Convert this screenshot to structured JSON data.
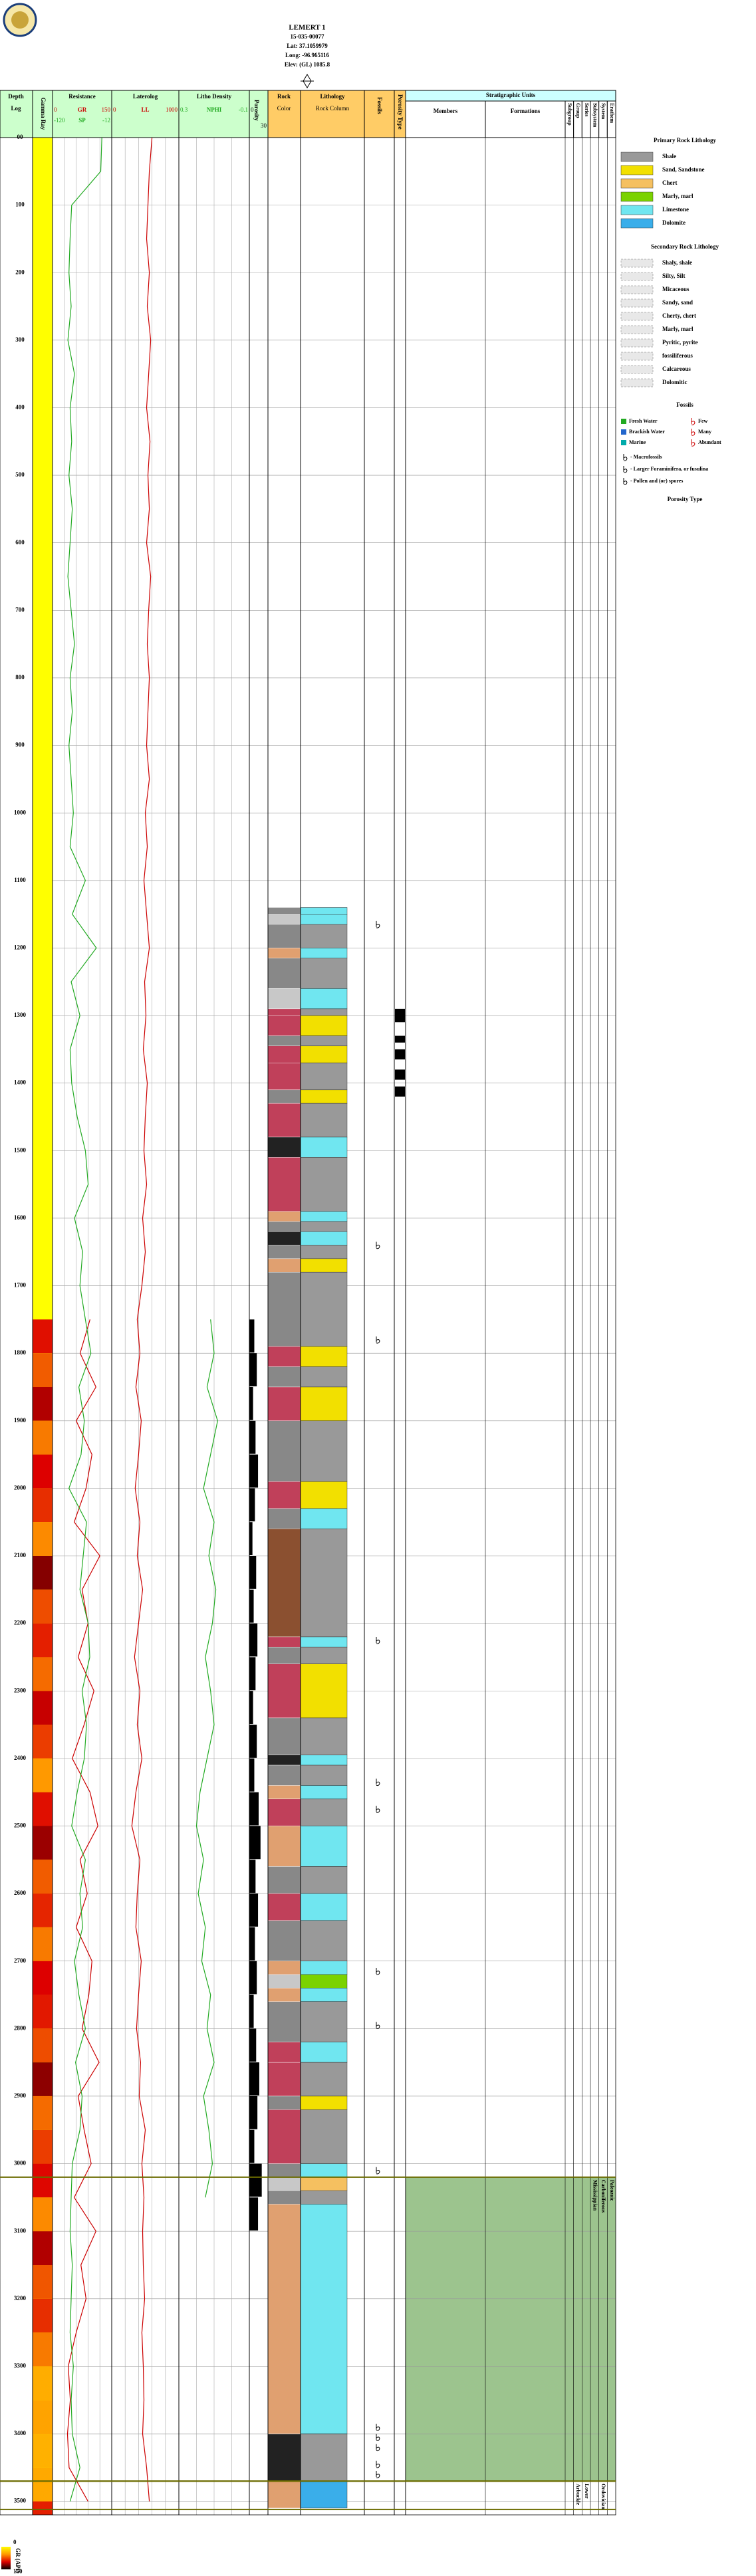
{
  "chart_data": {
    "type": "well_log",
    "title": "LEMERT 1",
    "subtitle": [
      "15-035-00077",
      "Lat: 37.1059979",
      "Long: -96.965116",
      "Elev: (GL) 1085.8"
    ],
    "depth_label": "Depth",
    "depth_sublabel": "Log",
    "gamma_label": "Gamma Ray",
    "ylim": [
      0,
      3520
    ],
    "yticks": [
      {
        "value": 0,
        "label": "00"
      },
      100,
      200,
      300,
      400,
      500,
      600,
      700,
      800,
      900,
      1000,
      1100,
      1200,
      1300,
      1400,
      1500,
      1600,
      1700,
      1800,
      1900,
      2000,
      2100,
      2200,
      2300,
      2400,
      2500,
      2600,
      2700,
      2800,
      2900,
      3000,
      3100,
      3200,
      3300,
      3400,
      3500
    ],
    "depths": [
      0,
      50,
      100,
      150,
      200,
      250,
      300,
      350,
      400,
      450,
      500,
      550,
      600,
      650,
      700,
      750,
      800,
      850,
      900,
      950,
      1000,
      1050,
      1100,
      1150,
      1200,
      1250,
      1300,
      1350,
      1400,
      1450,
      1500,
      1550,
      1600,
      1650,
      1700,
      1750,
      1800,
      1850,
      1900,
      1950,
      2000,
      2050,
      2100,
      2150,
      2200,
      2250,
      2300,
      2350,
      2400,
      2450,
      2500,
      2550,
      2600,
      2650,
      2700,
      2750,
      2800,
      2850,
      2900,
      2950,
      3000,
      3050,
      3100,
      3150,
      3200,
      3250,
      3300,
      3350,
      3400,
      3450,
      3500
    ],
    "tracks": [
      {
        "name": "Resistance",
        "xticks": [
          0,
          30,
          60,
          90,
          120,
          150
        ],
        "curves": [
          {
            "name": "GR",
            "color": "#cc0000",
            "xlim": [
              0,
              150
            ],
            "values": [
              null,
              null,
              null,
              null,
              null,
              null,
              null,
              null,
              null,
              null,
              null,
              null,
              null,
              null,
              null,
              null,
              null,
              null,
              null,
              null,
              null,
              null,
              null,
              null,
              null,
              null,
              null,
              null,
              null,
              null,
              null,
              null,
              null,
              null,
              null,
              95,
              70,
              110,
              60,
              100,
              85,
              55,
              120,
              75,
              90,
              65,
              105,
              80,
              50,
              95,
              115,
              70,
              88,
              60,
              100,
              92,
              75,
              118,
              65,
              80,
              98,
              55,
              110,
              72,
              85,
              60,
              40,
              45,
              38,
              42,
              90
            ]
          },
          {
            "name": "SP",
            "color": "#22aa22",
            "xlim": [
              -120,
              -12
            ],
            "values": [
              -30,
              -32,
              -85,
              -88,
              -90,
              -86,
              -92,
              -80,
              -88,
              -85,
              -90,
              -84,
              -88,
              -92,
              -86,
              -80,
              -88,
              -84,
              -90,
              -86,
              -82,
              -88,
              -60,
              -84,
              -40,
              -86,
              -70,
              -88,
              -85,
              -75,
              -60,
              -55,
              -80,
              -65,
              -70,
              -60,
              -50,
              -72,
              -62,
              -68,
              -90,
              -58,
              -64,
              -70,
              -55,
              -52,
              -66,
              -58,
              -62,
              -75,
              -85,
              -60,
              -70,
              -65,
              -80,
              -72,
              -60,
              -78,
              -66,
              -70,
              -84,
              -86,
              -88,
              -84,
              -86,
              -88,
              -82,
              -86,
              -84,
              -70,
              -88
            ]
          }
        ]
      },
      {
        "name": "Laterolog",
        "xticks": [
          0,
          200,
          400,
          600,
          800,
          1000
        ],
        "curves": [
          {
            "name": "LL",
            "color": "#cc0000",
            "xlim": [
              0,
              1000
            ],
            "values": [
              600,
              560,
              540,
              520,
              560,
              530,
              580,
              550,
              520,
              570,
              540,
              560,
              520,
              580,
              550,
              530,
              560,
              540,
              520,
              560,
              500,
              530,
              480,
              520,
              560,
              490,
              510,
              470,
              530,
              500,
              480,
              520,
              460,
              500,
              450,
              380,
              420,
              360,
              440,
              400,
              350,
              420,
              380,
              460,
              400,
              340,
              420,
              380,
              450,
              360,
              300,
              420,
              380,
              360,
              440,
              400,
              370,
              430,
              410,
              500,
              450,
              480,
              460,
              470,
              490,
              450,
              470,
              480,
              460,
              520,
              560
            ]
          }
        ]
      },
      {
        "name": "Litho Density",
        "xticks": [
          0.3,
          0.2,
          0.1,
          0,
          -0.1
        ],
        "curves": [
          {
            "name": "NPHI",
            "color": "#22aa22",
            "xlim": [
              0.3,
              -0.1
            ],
            "values": [
              null,
              null,
              null,
              null,
              null,
              null,
              null,
              null,
              null,
              null,
              null,
              null,
              null,
              null,
              null,
              null,
              null,
              null,
              null,
              null,
              null,
              null,
              null,
              null,
              null,
              null,
              null,
              null,
              null,
              null,
              null,
              null,
              null,
              null,
              null,
              0.12,
              0.1,
              0.14,
              0.08,
              0.12,
              0.16,
              0.1,
              0.13,
              0.09,
              0.11,
              0.15,
              0.12,
              0.1,
              0.14,
              0.18,
              0.2,
              0.16,
              0.19,
              0.15,
              0.17,
              0.12,
              0.14,
              0.1,
              0.16,
              0.13,
              0.11,
              0.15,
              null,
              null,
              null,
              null,
              null,
              null,
              null,
              null,
              null
            ]
          }
        ]
      },
      {
        "name": "Porosity",
        "curves": [
          {
            "color": "#000000",
            "style": "bars",
            "xlim": [
              0,
              30
            ],
            "values": [
              null,
              null,
              null,
              null,
              null,
              null,
              null,
              null,
              null,
              null,
              null,
              null,
              null,
              null,
              null,
              null,
              null,
              null,
              null,
              null,
              null,
              null,
              null,
              null,
              null,
              null,
              null,
              null,
              null,
              null,
              null,
              null,
              null,
              null,
              null,
              8,
              12,
              6,
              10,
              14,
              9,
              5,
              11,
              7,
              13,
              10,
              6,
              12,
              8,
              15,
              18,
              10,
              14,
              9,
              12,
              7,
              11,
              16,
              13,
              8,
              20,
              14,
              null,
              null,
              null,
              null,
              null,
              null,
              null,
              null,
              null
            ]
          }
        ]
      }
    ],
    "colorbar": {
      "label": "GR (API)",
      "lim": [
        0,
        150
      ],
      "colors": [
        "#ffff00",
        "#ff9900",
        "#dd0000",
        "#000000"
      ]
    },
    "rock_headers": {
      "color_title": "Rock",
      "color_sub": "Color",
      "lith_title": "Lithology",
      "lith_sub": "Rock Column",
      "fossils": "Fossils",
      "porosity_type": "Porosity Type"
    },
    "lithology": [
      {
        "top": 1140,
        "base": 1150,
        "lith": 4,
        "color": "#888888"
      },
      {
        "top": 1150,
        "base": 1165,
        "lith": 4,
        "color": "#c8c8c8"
      },
      {
        "top": 1165,
        "base": 1200,
        "lith": 0,
        "color": "#888888"
      },
      {
        "top": 1200,
        "base": 1215,
        "lith": 4,
        "color": "#e0a070"
      },
      {
        "top": 1215,
        "base": 1260,
        "lith": 0,
        "color": "#888888"
      },
      {
        "top": 1260,
        "base": 1290,
        "lith": 4,
        "color": "#c8c8c8"
      },
      {
        "top": 1290,
        "base": 1300,
        "lith": 0,
        "color": "#c0405a"
      },
      {
        "top": 1300,
        "base": 1330,
        "lith": 1,
        "color": "#c0405a"
      },
      {
        "top": 1330,
        "base": 1345,
        "lith": 0,
        "color": "#888888"
      },
      {
        "top": 1345,
        "base": 1370,
        "lith": 1,
        "color": "#c0405a"
      },
      {
        "top": 1370,
        "base": 1410,
        "lith": 0,
        "color": "#c0405a"
      },
      {
        "top": 1410,
        "base": 1430,
        "lith": 1,
        "color": "#888888"
      },
      {
        "top": 1430,
        "base": 1480,
        "lith": 0,
        "color": "#c0405a"
      },
      {
        "top": 1480,
        "base": 1510,
        "lith": 4,
        "color": "#222222"
      },
      {
        "top": 1510,
        "base": 1590,
        "lith": 0,
        "color": "#c0405a"
      },
      {
        "top": 1590,
        "base": 1605,
        "lith": 4,
        "color": "#e0a070"
      },
      {
        "top": 1605,
        "base": 1620,
        "lith": 0,
        "color": "#888888"
      },
      {
        "top": 1620,
        "base": 1640,
        "lith": 4,
        "color": "#222222"
      },
      {
        "top": 1640,
        "base": 1660,
        "lith": 0,
        "color": "#888888"
      },
      {
        "top": 1660,
        "base": 1680,
        "lith": 1,
        "color": "#e0a070"
      },
      {
        "top": 1680,
        "base": 1790,
        "lith": 0,
        "color": "#888888"
      },
      {
        "top": 1790,
        "base": 1820,
        "lith": 1,
        "color": "#c0405a"
      },
      {
        "top": 1820,
        "base": 1850,
        "lith": 0,
        "color": "#888888"
      },
      {
        "top": 1850,
        "base": 1900,
        "lith": 1,
        "color": "#c0405a"
      },
      {
        "top": 1900,
        "base": 1990,
        "lith": 0,
        "color": "#888888"
      },
      {
        "top": 1990,
        "base": 2030,
        "lith": 1,
        "color": "#c0405a"
      },
      {
        "top": 2030,
        "base": 2060,
        "lith": 4,
        "color": "#888888"
      },
      {
        "top": 2060,
        "base": 2220,
        "lith": 0,
        "color": "#8b5030"
      },
      {
        "top": 2220,
        "base": 2235,
        "lith": 4,
        "color": "#c0405a"
      },
      {
        "top": 2235,
        "base": 2260,
        "lith": 0,
        "color": "#888888"
      },
      {
        "top": 2260,
        "base": 2340,
        "lith": 1,
        "color": "#c0405a"
      },
      {
        "top": 2340,
        "base": 2395,
        "lith": 0,
        "color": "#888888"
      },
      {
        "top": 2395,
        "base": 2410,
        "lith": 4,
        "color": "#222222"
      },
      {
        "top": 2410,
        "base": 2440,
        "lith": 0,
        "color": "#888888"
      },
      {
        "top": 2440,
        "base": 2460,
        "lith": 4,
        "color": "#e0a070"
      },
      {
        "top": 2460,
        "base": 2500,
        "lith": 0,
        "color": "#c0405a"
      },
      {
        "top": 2500,
        "base": 2560,
        "lith": 4,
        "color": "#e0a070"
      },
      {
        "top": 2560,
        "base": 2600,
        "lith": 0,
        "color": "#888888"
      },
      {
        "top": 2600,
        "base": 2640,
        "lith": 4,
        "color": "#c0405a"
      },
      {
        "top": 2640,
        "base": 2700,
        "lith": 0,
        "color": "#888888"
      },
      {
        "top": 2700,
        "base": 2720,
        "lith": 4,
        "color": "#e0a070"
      },
      {
        "top": 2720,
        "base": 2740,
        "lith": 3,
        "color": "#c8c8c8"
      },
      {
        "top": 2740,
        "base": 2760,
        "lith": 4,
        "color": "#e0a070"
      },
      {
        "top": 2760,
        "base": 2820,
        "lith": 0,
        "color": "#888888"
      },
      {
        "top": 2820,
        "base": 2850,
        "lith": 4,
        "color": "#c0405a"
      },
      {
        "top": 2850,
        "base": 2900,
        "lith": 0,
        "color": "#c0405a"
      },
      {
        "top": 2900,
        "base": 2920,
        "lith": 1,
        "color": "#888888"
      },
      {
        "top": 2920,
        "base": 3000,
        "lith": 0,
        "color": "#c0405a"
      },
      {
        "top": 3000,
        "base": 3020,
        "lith": 4,
        "color": "#888888"
      },
      {
        "top": 3020,
        "base": 3040,
        "lith": 2,
        "color": "#c8c8c8"
      },
      {
        "top": 3040,
        "base": 3060,
        "lith": 0,
        "color": "#888888"
      },
      {
        "top": 3060,
        "base": 3400,
        "lith": 4,
        "color": "#e0a070"
      },
      {
        "top": 3400,
        "base": 3470,
        "lith": 0,
        "color": "#222222"
      },
      {
        "top": 3470,
        "base": 3510,
        "lith": 5,
        "color": "#e0a070"
      }
    ],
    "fossils": [
      1165,
      1640,
      1780,
      2225,
      2435,
      2475,
      2715,
      2795,
      3010,
      3390,
      3405,
      3420,
      3445,
      3460
    ],
    "porosity_types": [
      [
        1290,
        1310
      ],
      [
        1330,
        1340
      ],
      [
        1350,
        1365
      ],
      [
        1380,
        1395
      ],
      [
        1405,
        1420
      ]
    ],
    "strat_title": "Stratigraphic Units",
    "strat_columns": [
      "Members",
      "Formations",
      "Subgroup",
      "Group",
      "Series",
      "Subsystem",
      "System",
      "Erathem"
    ],
    "strat_units": [
      {
        "top": 3020,
        "base": 3470,
        "color": "#9cc48e",
        "labels": {
          "Subsystem": "Mississippian",
          "System": "Carboniferous",
          "Erathem": "Paleozoic"
        }
      },
      {
        "top": 3470,
        "base": 3512,
        "color": "#ffffff",
        "labels": {
          "Group": "Arbuckle",
          "Series": "Lower",
          "System": "Ordovician"
        }
      }
    ],
    "legend": {
      "primary_title": "Primary Rock Lithology",
      "primary": [
        {
          "label": "Shale",
          "color": "#999999"
        },
        {
          "label": "Sand, Sandstone",
          "color": "#f2e000"
        },
        {
          "label": "Chert",
          "color": "#f5c060"
        },
        {
          "label": "Marly, marl",
          "color": "#7bd200"
        },
        {
          "label": "Limestone",
          "color": "#70e6f0"
        },
        {
          "label": "Dolomite",
          "color": "#3aaeea"
        }
      ],
      "secondary_title": "Secondary Rock Lithology",
      "secondary": [
        "Shaly, shale",
        "Silty, Silt",
        "Micaceous",
        "Sandy, sand",
        "Cherty, chert",
        "Marly, marl",
        "Pyritic, pyrite",
        "fossiliferous",
        "Calcareous",
        "Dolomitic"
      ],
      "fossils_title": "Fossils",
      "fossil_env": [
        {
          "label": "Fresh Water",
          "color": "#22aa22"
        },
        {
          "label": "Brackish Water",
          "color": "#2266cc"
        },
        {
          "label": "Marine",
          "color": "#00aaaa"
        }
      ],
      "fossil_abundance": [
        "Few",
        "Many",
        "Abundant"
      ],
      "fossil_kinds": [
        "- Macrofossils",
        "- Larger Foraminifera, or fusulina",
        "- Pollen and (or) spores"
      ],
      "porosity_title": "Porosity Type"
    }
  }
}
